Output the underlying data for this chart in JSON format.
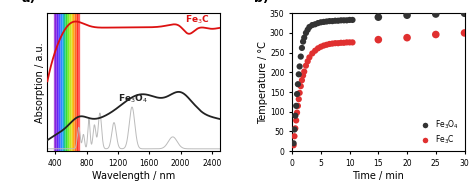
{
  "panel_a": {
    "xlabel": "Wavelength / nm",
    "ylabel": "Absorption / a.u.",
    "xlim": [
      300,
      2500
    ],
    "xticks": [
      400,
      800,
      1200,
      1600,
      2000,
      2400
    ],
    "rainbow_x_start": 380,
    "rainbow_x_end": 700,
    "fe3c_color": "#dd1111",
    "fe3o4_color": "#222222",
    "gray_color": "#bbbbbb"
  },
  "panel_b": {
    "xlabel": "Time / min",
    "ylabel": "Temperature / °C",
    "xlim": [
      0,
      30
    ],
    "ylim": [
      0,
      350
    ],
    "yticks": [
      0,
      50,
      100,
      150,
      200,
      250,
      300,
      350
    ],
    "xticks": [
      0,
      5,
      10,
      15,
      20,
      25,
      30
    ],
    "fe3o4_color": "#333333",
    "fe3c_color": "#e03030",
    "fe3o4_t": [
      0.25,
      0.4,
      0.55,
      0.7,
      0.85,
      1.0,
      1.15,
      1.3,
      1.5,
      1.7,
      1.9,
      2.1,
      2.4,
      2.7,
      3.0,
      3.5,
      4.0,
      4.5,
      5.0,
      5.5,
      6.0,
      6.5,
      7.0,
      7.5,
      8.0,
      8.5,
      9.0,
      9.5,
      10.0,
      10.5
    ],
    "fe3o4_T": [
      20,
      55,
      90,
      115,
      145,
      170,
      195,
      215,
      240,
      262,
      278,
      288,
      300,
      308,
      315,
      320,
      322,
      325,
      327,
      328,
      329,
      330,
      330,
      331,
      331,
      332,
      332,
      332,
      333,
      333
    ],
    "fe3o4_t_sparse": [
      15,
      20,
      25,
      30
    ],
    "fe3o4_T_sparse": [
      340,
      345,
      348,
      350
    ],
    "fe3c_t": [
      0.25,
      0.4,
      0.55,
      0.7,
      0.85,
      1.0,
      1.15,
      1.3,
      1.5,
      1.7,
      1.9,
      2.1,
      2.4,
      2.7,
      3.0,
      3.5,
      4.0,
      4.5,
      5.0,
      5.5,
      6.0,
      6.5,
      7.0,
      7.5,
      8.0,
      8.5,
      9.0,
      9.5,
      10.0,
      10.5
    ],
    "fe3c_T": [
      15,
      38,
      58,
      78,
      98,
      115,
      132,
      148,
      165,
      180,
      192,
      202,
      217,
      228,
      238,
      248,
      255,
      261,
      265,
      268,
      270,
      272,
      273,
      274,
      274,
      275,
      275,
      276,
      276,
      276
    ],
    "fe3c_t_sparse": [
      15,
      20,
      25,
      30
    ],
    "fe3c_T_sparse": [
      283,
      288,
      296,
      300
    ]
  }
}
